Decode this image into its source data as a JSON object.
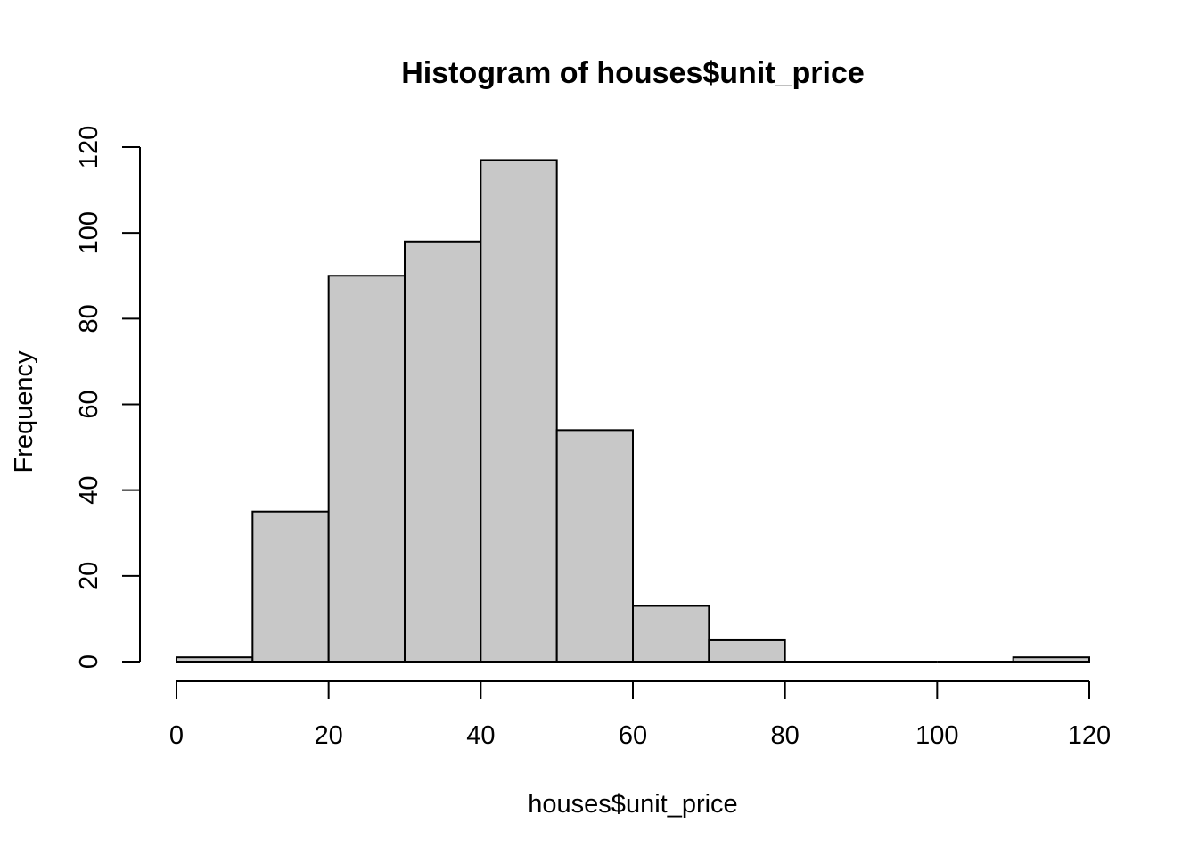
{
  "chart_data": {
    "type": "bar",
    "title": "Histogram of houses$unit_price",
    "xlabel": "houses$unit_price",
    "ylabel": "Frequency",
    "bins": [
      {
        "start": 0,
        "end": 10,
        "count": 1
      },
      {
        "start": 10,
        "end": 20,
        "count": 35
      },
      {
        "start": 20,
        "end": 30,
        "count": 90
      },
      {
        "start": 30,
        "end": 40,
        "count": 98
      },
      {
        "start": 40,
        "end": 50,
        "count": 117
      },
      {
        "start": 50,
        "end": 60,
        "count": 54
      },
      {
        "start": 60,
        "end": 70,
        "count": 13
      },
      {
        "start": 70,
        "end": 80,
        "count": 5
      },
      {
        "start": 80,
        "end": 90,
        "count": 0
      },
      {
        "start": 90,
        "end": 100,
        "count": 0
      },
      {
        "start": 100,
        "end": 110,
        "count": 0
      },
      {
        "start": 110,
        "end": 120,
        "count": 1
      }
    ],
    "xlim": [
      0,
      120
    ],
    "ylim": [
      0,
      120
    ],
    "xticks": [
      "0",
      "20",
      "40",
      "60",
      "80",
      "100",
      "120"
    ],
    "yticks": [
      "0",
      "20",
      "40",
      "60",
      "80",
      "100",
      "120"
    ],
    "bar_fill": "#c8c8c8",
    "bar_stroke": "#000000",
    "grid": false
  }
}
